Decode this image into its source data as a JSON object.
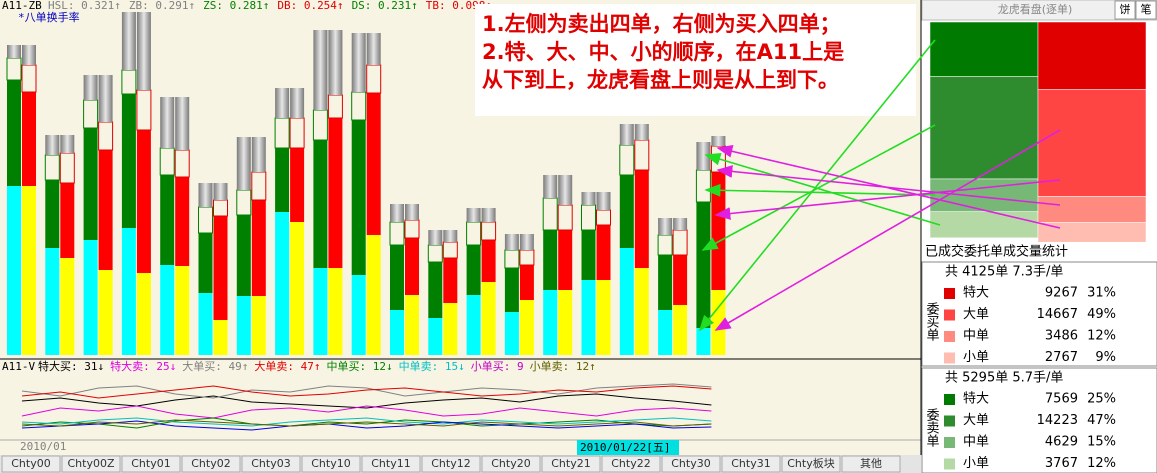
{
  "header": {
    "indicator": "A11-ZB",
    "stats": [
      {
        "text": "HSL: 0.321↑",
        "color": "#808080"
      },
      {
        "text": "ZB: 0.291↑",
        "color": "#808080"
      },
      {
        "text": "ZS: 0.281↑",
        "color": "#008000"
      },
      {
        "text": "DB: 0.254↑",
        "color": "#e00000"
      },
      {
        "text": "DS: 0.231↑",
        "color": "#008000"
      },
      {
        "text": "TB: 0.098↑",
        "color": "#e00000"
      }
    ],
    "subtitle": "*八单换手率"
  },
  "note": [
    "1.左侧为卖出四单，右侧为买入四单；",
    "2.特、大、中、小的顺序，在A11上是",
    "从下到上，龙虎看盘上则是从上到下。"
  ],
  "chart": {
    "ylim": [
      0,
      345
    ],
    "sell_colors": [
      "#00ffff",
      "#008000",
      "none",
      "gray"
    ],
    "buy_colors": [
      "#ffff00",
      "#ff0000",
      "none",
      "gray"
    ],
    "groups": [
      {
        "sell": [
          169,
          106,
          22,
          13
        ],
        "buy": [
          169,
          94,
          27,
          20
        ]
      },
      {
        "sell": [
          107,
          68,
          25,
          20
        ],
        "buy": [
          97,
          75,
          30,
          18
        ]
      },
      {
        "sell": [
          115,
          112,
          28,
          25
        ],
        "buy": [
          85,
          120,
          28,
          47
        ]
      },
      {
        "sell": [
          127,
          134,
          24,
          58
        ],
        "buy": [
          82,
          143,
          40,
          78
        ]
      },
      {
        "sell": [
          90,
          90,
          27,
          51
        ],
        "buy": [
          89,
          89,
          27,
          53
        ]
      },
      {
        "sell": [
          62,
          60,
          26,
          24
        ],
        "buy": [
          35,
          104,
          16,
          17
        ]
      },
      {
        "sell": [
          59,
          81,
          25,
          53
        ],
        "buy": [
          59,
          96,
          28,
          35
        ]
      },
      {
        "sell": [
          143,
          64,
          30,
          30
        ],
        "buy": [
          133,
          74,
          30,
          30
        ]
      },
      {
        "sell": [
          87,
          128,
          30,
          80
        ],
        "buy": [
          87,
          150,
          23,
          65
        ]
      },
      {
        "sell": [
          80,
          155,
          28,
          59
        ],
        "buy": [
          120,
          142,
          28,
          32
        ]
      },
      {
        "sell": [
          45,
          65,
          23,
          18
        ],
        "buy": [
          60,
          57,
          18,
          16
        ]
      },
      {
        "sell": [
          37,
          56,
          17,
          15
        ],
        "buy": [
          52,
          45,
          16,
          12
        ]
      },
      {
        "sell": [
          60,
          50,
          23,
          14
        ],
        "buy": [
          73,
          42,
          18,
          14
        ]
      },
      {
        "sell": [
          43,
          44,
          18,
          16
        ],
        "buy": [
          55,
          35,
          15,
          16
        ]
      },
      {
        "sell": [
          65,
          60,
          32,
          23
        ],
        "buy": [
          65,
          60,
          25,
          30
        ]
      },
      {
        "sell": [
          75,
          50,
          25,
          13
        ],
        "buy": [
          75,
          55,
          15,
          18
        ]
      },
      {
        "sell": [
          107,
          73,
          30,
          21
        ],
        "buy": [
          87,
          98,
          30,
          16
        ]
      },
      {
        "sell": [
          45,
          55,
          20,
          17
        ],
        "buy": [
          50,
          50,
          25,
          12
        ]
      },
      {
        "sell": [
          27,
          126,
          32,
          28
        ],
        "buy": [
          65,
          118,
          26,
          10
        ]
      }
    ]
  },
  "volume": {
    "label": "A11-V",
    "ylim": [
      0,
      60
    ],
    "stats": [
      {
        "text": "特大买: 31↓",
        "color": "#000000"
      },
      {
        "text": "特大卖: 25↓",
        "color": "#e000e0"
      },
      {
        "text": "大单买: 49↑",
        "color": "#808080"
      },
      {
        "text": "大单卖: 47↑",
        "color": "#e00000"
      },
      {
        "text": "中单买: 12↓",
        "color": "#008000"
      },
      {
        "text": "中单卖: 15↓",
        "color": "#00c0c0"
      },
      {
        "text": "小单买: 9",
        "color": "#c000c0"
      },
      {
        "text": "小单卖: 12↑",
        "color": "#606000"
      }
    ],
    "lines": [
      {
        "color": "#000000",
        "values": [
          35,
          38,
          33,
          30,
          36,
          40,
          34,
          32,
          30,
          28,
          33,
          36,
          38,
          34,
          40,
          42,
          38,
          35,
          31
        ]
      },
      {
        "color": "#e000e0",
        "values": [
          20,
          28,
          25,
          30,
          22,
          18,
          26,
          28,
          24,
          30,
          26,
          20,
          22,
          28,
          24,
          20,
          26,
          28,
          25
        ]
      },
      {
        "color": "#808080",
        "values": [
          45,
          40,
          48,
          50,
          42,
          38,
          46,
          44,
          50,
          48,
          40,
          44,
          48,
          46,
          42,
          48,
          50,
          52,
          49
        ]
      },
      {
        "color": "#e00000",
        "values": [
          40,
          44,
          38,
          42,
          46,
          50,
          44,
          40,
          42,
          46,
          48,
          44,
          40,
          42,
          46,
          44,
          48,
          50,
          47
        ]
      },
      {
        "color": "#008000",
        "values": [
          10,
          14,
          12,
          8,
          15,
          18,
          12,
          10,
          14,
          12,
          16,
          14,
          10,
          12,
          14,
          16,
          12,
          10,
          12
        ]
      },
      {
        "color": "#00c0c0",
        "values": [
          14,
          12,
          16,
          18,
          14,
          12,
          10,
          14,
          16,
          18,
          14,
          12,
          16,
          14,
          12,
          14,
          16,
          18,
          15
        ]
      },
      {
        "color": "#0000e0",
        "values": [
          8,
          10,
          12,
          15,
          10,
          8,
          6,
          10,
          12,
          8,
          10,
          14,
          12,
          10,
          8,
          10,
          12,
          8,
          9
        ]
      },
      {
        "color": "#606000",
        "values": [
          12,
          10,
          14,
          12,
          16,
          14,
          12,
          10,
          12,
          14,
          12,
          10,
          14,
          12,
          10,
          12,
          14,
          10,
          12
        ]
      }
    ]
  },
  "dates": [
    "2010/01",
    "2010/01/22[五]"
  ],
  "tabs": [
    "Chty00",
    "Chty00Z",
    "Chty01",
    "Chty02",
    "Chty03",
    "Chty10",
    "Chty11",
    "Chty12",
    "Chty20",
    "Chty21",
    "Chty22",
    "Chty30",
    "Chty31",
    "Chty板块",
    "其他"
  ],
  "panel": {
    "title": "龙虎看盘(逐单)",
    "buttons": [
      "饼",
      "笔"
    ],
    "stats_title": "已成交委托单成交量统计",
    "buy": {
      "label": "委买单",
      "summary": "共 4125单 7.3手/单",
      "colors": [
        "#e00000",
        "#ff4444",
        "#ff8a80",
        "#ffbcb0"
      ],
      "rows": [
        {
          "name": "特大",
          "volume": 9267,
          "percent": 31,
          "percent_label": "31%"
        },
        {
          "name": "大单",
          "volume": 14667,
          "percent": 49,
          "percent_label": "49%"
        },
        {
          "name": "中单",
          "volume": 3486,
          "percent": 12,
          "percent_label": "12%"
        },
        {
          "name": "小单",
          "volume": 2767,
          "percent": 9,
          "percent_label": "9%"
        }
      ]
    },
    "sell": {
      "label": "委卖单",
      "summary": "共 5295单 5.7手/单",
      "colors": [
        "#007a00",
        "#2e8b2e",
        "#77b877",
        "#b5d9a5"
      ],
      "rows": [
        {
          "name": "特大",
          "volume": 7569,
          "percent": 25,
          "percent_label": "25%"
        },
        {
          "name": "大单",
          "volume": 14223,
          "percent": 47,
          "percent_label": "47%"
        },
        {
          "name": "中单",
          "volume": 4629,
          "percent": 15,
          "percent_label": "15%"
        },
        {
          "name": "小单",
          "volume": 3767,
          "percent": 12,
          "percent_label": "12%"
        }
      ]
    }
  }
}
